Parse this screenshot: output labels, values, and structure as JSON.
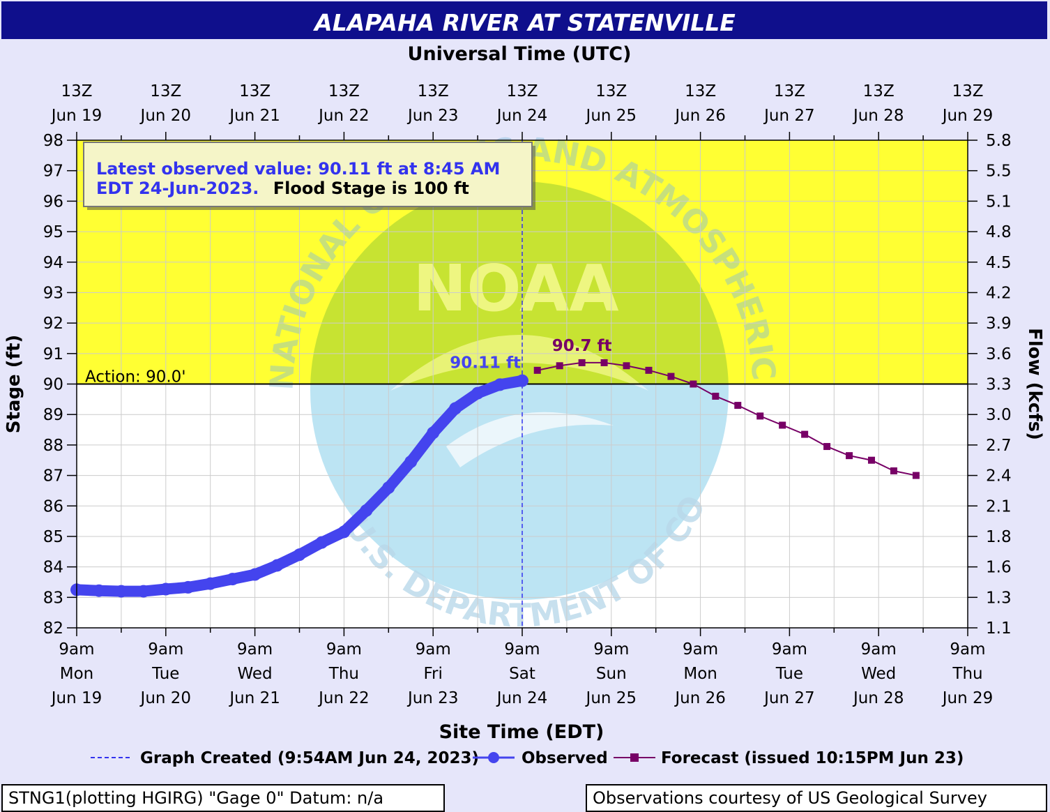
{
  "title": "ALAPAHA RIVER AT STATENVILLE",
  "top_axis_title": "Universal Time (UTC)",
  "bottom_axis_title": "Site Time (EDT)",
  "info_box": {
    "line1": "Latest observed value: 90.11 ft at 8:45 AM",
    "line2_blue": "EDT 24-Jun-2023.",
    "line2_black": "Flood Stage is 100 ft"
  },
  "action_label": "Action: 90.0'",
  "observed_label": "90.11 ft",
  "forecast_peak_label": "90.7 ft",
  "legend": {
    "graph_created": "Graph Created (9:54AM Jun 24, 2023)",
    "observed": "Observed",
    "forecast": "Forecast (issued 10:15PM Jun 23)"
  },
  "footer_left": "STNG1(plotting HGIRG) \"Gage 0\" Datum: n/a",
  "footer_right": "Observations courtesy of US Geological Survey",
  "watermark": {
    "logo_text": "NOAA",
    "ring_top": "NATIONAL OCEANIC AND ATMOSPHERIC ADMINISTRATION",
    "ring_bottom": "U.S. DEPARTMENT OF COMMERCE"
  },
  "colors": {
    "background": "#E6E6FA",
    "title_bar": "#0F0F8C",
    "action_zone": "#FFFF33",
    "observed": "#4444EE",
    "forecast": "#770066",
    "info_blue": "#3333EE"
  },
  "chart_data": {
    "type": "line",
    "ylabel": "Stage (ft)",
    "y2label": "Flow (kcfs)",
    "ylim": [
      82,
      98
    ],
    "yticks": [
      "82",
      "83",
      "84",
      "85",
      "86",
      "87",
      "88",
      "89",
      "90",
      "91",
      "92",
      "93",
      "94",
      "95",
      "96",
      "97",
      "98"
    ],
    "y2ticks": [
      "1.1",
      "1.3",
      "1.6",
      "1.8",
      "2.1",
      "2.4",
      "2.7",
      "3.0",
      "3.3",
      "3.6",
      "3.9",
      "4.2",
      "4.5",
      "4.8",
      "5.1",
      "5.5",
      "5.8"
    ],
    "x_axis_units": "days after 9am EDT Mon Jun 19",
    "xlim": [
      0,
      10
    ],
    "top_ticks": [
      {
        "t": "13Z",
        "d": "Jun 19"
      },
      {
        "t": "13Z",
        "d": "Jun 20"
      },
      {
        "t": "13Z",
        "d": "Jun 21"
      },
      {
        "t": "13Z",
        "d": "Jun 22"
      },
      {
        "t": "13Z",
        "d": "Jun 23"
      },
      {
        "t": "13Z",
        "d": "Jun 24"
      },
      {
        "t": "13Z",
        "d": "Jun 25"
      },
      {
        "t": "13Z",
        "d": "Jun 26"
      },
      {
        "t": "13Z",
        "d": "Jun 27"
      },
      {
        "t": "13Z",
        "d": "Jun 28"
      },
      {
        "t": "13Z",
        "d": "Jun 29"
      }
    ],
    "bottom_ticks": [
      {
        "t": "9am",
        "w": "Mon",
        "d": "Jun 19"
      },
      {
        "t": "9am",
        "w": "Tue",
        "d": "Jun 20"
      },
      {
        "t": "9am",
        "w": "Wed",
        "d": "Jun 21"
      },
      {
        "t": "9am",
        "w": "Thu",
        "d": "Jun 22"
      },
      {
        "t": "9am",
        "w": "Fri",
        "d": "Jun 23"
      },
      {
        "t": "9am",
        "w": "Sat",
        "d": "Jun 24"
      },
      {
        "t": "9am",
        "w": "Sun",
        "d": "Jun 25"
      },
      {
        "t": "9am",
        "w": "Mon",
        "d": "Jun 26"
      },
      {
        "t": "9am",
        "w": "Tue",
        "d": "Jun 27"
      },
      {
        "t": "9am",
        "w": "Wed",
        "d": "Jun 28"
      },
      {
        "t": "9am",
        "w": "Thu",
        "d": "Jun 29"
      }
    ],
    "action_stage": 90.0,
    "graph_created_x": 5.0,
    "series": [
      {
        "name": "Observed",
        "x": [
          0.0,
          0.25,
          0.5,
          0.75,
          1.0,
          1.25,
          1.5,
          1.75,
          2.0,
          2.25,
          2.5,
          2.75,
          3.0,
          3.25,
          3.5,
          3.75,
          4.0,
          4.25,
          4.5,
          4.75,
          5.0
        ],
        "y": [
          83.25,
          83.22,
          83.2,
          83.2,
          83.27,
          83.33,
          83.45,
          83.6,
          83.75,
          84.05,
          84.4,
          84.8,
          85.15,
          85.85,
          86.6,
          87.45,
          88.4,
          89.2,
          89.7,
          89.98,
          90.11
        ]
      },
      {
        "name": "Forecast (issued 10:15PM Jun 23)",
        "x": [
          5.17,
          5.42,
          5.67,
          5.92,
          6.17,
          6.42,
          6.67,
          6.92,
          7.17,
          7.42,
          7.67,
          7.92,
          8.17,
          8.42,
          8.67,
          8.92,
          9.17,
          9.42
        ],
        "y": [
          90.45,
          90.6,
          90.7,
          90.7,
          90.6,
          90.45,
          90.25,
          90.0,
          89.6,
          89.3,
          88.95,
          88.65,
          88.35,
          87.95,
          87.65,
          87.5,
          87.15,
          87.0
        ]
      }
    ]
  }
}
